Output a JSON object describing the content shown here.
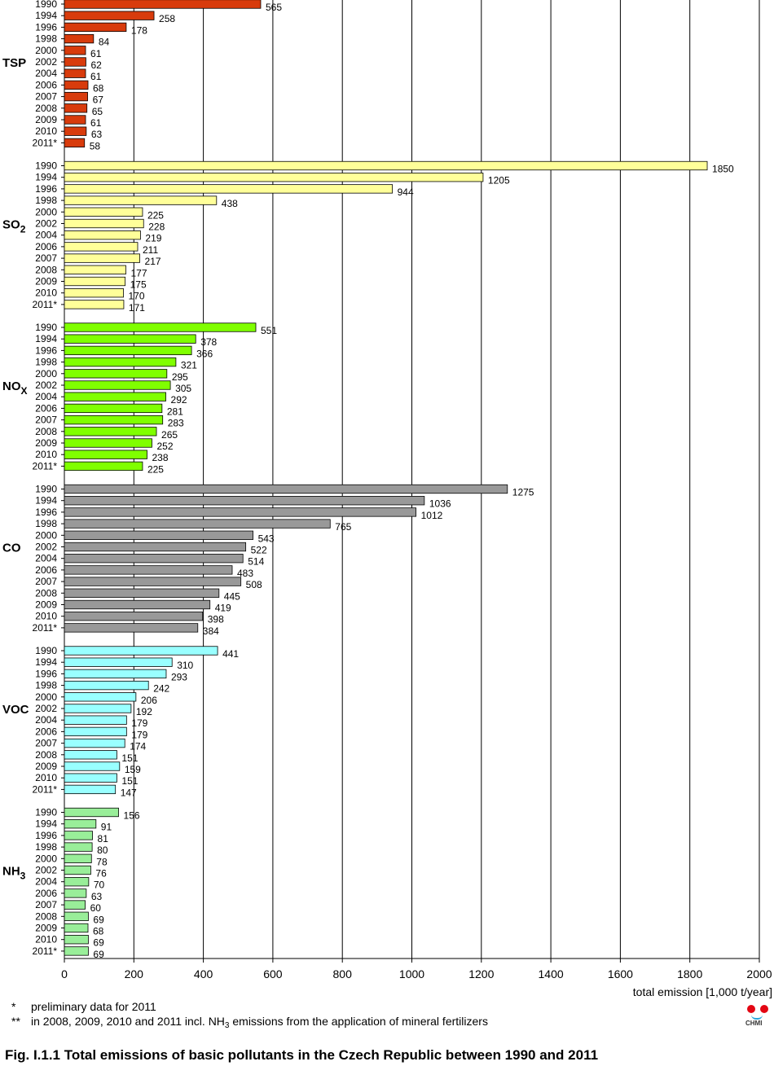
{
  "chart_data": {
    "type": "bar",
    "orientation": "horizontal",
    "title": "Fig. I.1.1  Total emissions of basic pollutants in the Czech Republic between 1990 and 2011",
    "xlabel": "total emission [1,000 t/year]",
    "xlim": [
      0,
      2000
    ],
    "xticks": [
      "0",
      "200",
      "400",
      "600",
      "800",
      "1000",
      "1200",
      "1400",
      "1600",
      "1800",
      "2000"
    ],
    "grid": "vertical",
    "categories": [
      "1990",
      "1994",
      "1996",
      "1998",
      "2000",
      "2002",
      "2004",
      "2006",
      "2007",
      "2008",
      "2009",
      "2010",
      "2011*"
    ],
    "groups": [
      {
        "name": "TSP",
        "sub": "",
        "color": "#d83b0c",
        "values": [
          565,
          258,
          178,
          84,
          61,
          62,
          61,
          68,
          67,
          65,
          61,
          63,
          58
        ]
      },
      {
        "name": "SO",
        "sub": "2",
        "color": "#ffff99",
        "values": [
          1850,
          1205,
          944,
          438,
          225,
          228,
          219,
          211,
          217,
          177,
          175,
          170,
          171
        ]
      },
      {
        "name": "NO",
        "sub": "X",
        "color": "#80ff00",
        "values": [
          551,
          378,
          366,
          321,
          295,
          305,
          292,
          281,
          283,
          265,
          252,
          238,
          225
        ]
      },
      {
        "name": "CO",
        "sub": "",
        "color": "#999999",
        "values": [
          1275,
          1036,
          1012,
          765,
          543,
          522,
          514,
          483,
          508,
          445,
          419,
          398,
          384
        ]
      },
      {
        "name": "VOC",
        "sub": "",
        "color": "#99ffff",
        "values": [
          441,
          310,
          293,
          242,
          206,
          192,
          179,
          179,
          174,
          151,
          159,
          151,
          147
        ]
      },
      {
        "name": "NH",
        "sub": "3",
        "color": "#99ee99",
        "values": [
          156,
          91,
          81,
          80,
          78,
          76,
          70,
          63,
          60,
          69,
          68,
          69,
          69
        ]
      }
    ]
  },
  "notes": {
    "star_mark": "*",
    "star_text": "preliminary data for 2011",
    "dstar_mark": "**",
    "dstar_pre": "in 2008, 2009, 2010 and 2011 incl. NH",
    "dstar_sub": "3",
    "dstar_post": " emissions from the application of mineral fertilizers"
  },
  "logo": {
    "text": "CHMI"
  }
}
